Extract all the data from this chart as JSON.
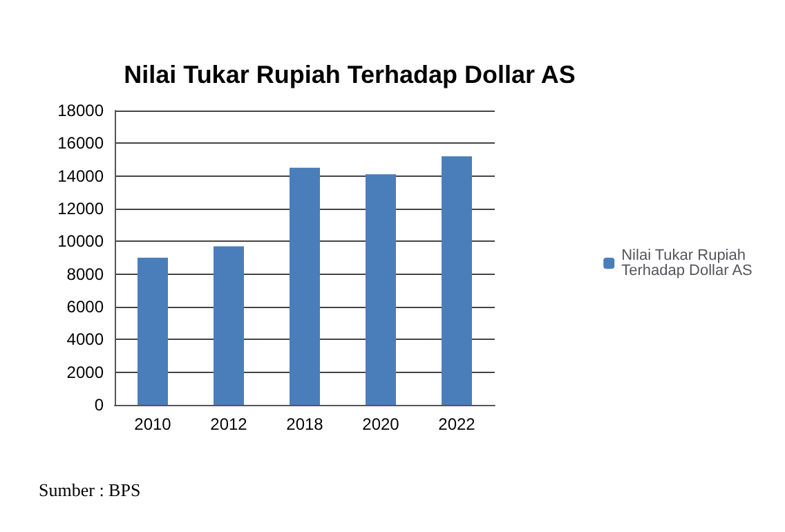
{
  "chart_data": {
    "type": "bar",
    "title": "Nilai Tukar Rupiah Terhadap Dollar AS",
    "categories": [
      "2010",
      "2012",
      "2018",
      "2020",
      "2022"
    ],
    "series": [
      {
        "name": "Nilai Tukar Rupiah Terhadap Dollar AS",
        "color": "#4a7ebb",
        "values": [
          9000,
          9700,
          14500,
          14100,
          15200
        ]
      }
    ],
    "ylim": [
      0,
      18000
    ],
    "yticks": [
      0,
      2000,
      4000,
      6000,
      8000,
      10000,
      12000,
      14000,
      16000,
      18000
    ],
    "grid": "y",
    "legend": "right",
    "annotations": [
      "Sumber : BPS"
    ]
  }
}
